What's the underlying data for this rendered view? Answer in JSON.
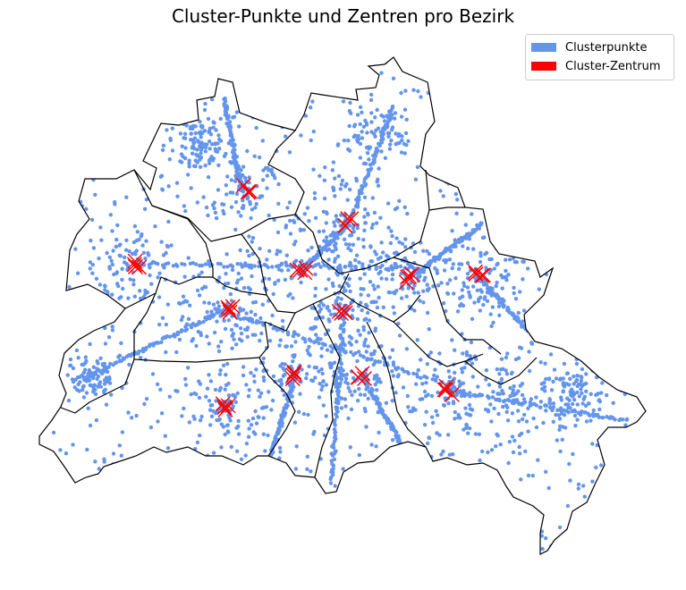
{
  "title": "Cluster-Punkte und Zentren pro Bezirk",
  "legend": [
    {
      "label": "Clusterpunkte",
      "color": "#6495ED"
    },
    {
      "label": "Cluster-Zentrum",
      "color": "#FF0000"
    }
  ],
  "chart_data": {
    "type": "scatter",
    "title": "Cluster-Punkte und Zentren pro Bezirk",
    "axes_visible": false,
    "legend_placement": "top-right",
    "point_color": "#6495ED",
    "center_color": "#FF0000",
    "boundary_color": "#000000",
    "series": [
      {
        "name": "Clusterpunkte",
        "marker": "dot"
      },
      {
        "name": "Cluster-Zentrum",
        "marker": "x"
      }
    ]
  }
}
